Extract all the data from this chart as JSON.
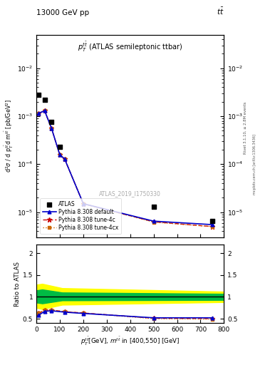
{
  "title_left": "13000 GeV pp",
  "title_right": "tt̅",
  "panel_title": "$p_T^{t\\bar{t}}$ (ATLAS semileptonic ttbar)",
  "watermark": "ATLAS_2019_I1750330",
  "right_label": "mcplots.cern.ch [arXiv:1306.3436]",
  "rivet_label": "Rivet 3.1.10, ≥ 2.8M events",
  "xlim": [
    0,
    800
  ],
  "ylim_log": [
    3e-06,
    0.05
  ],
  "ylim_ratio": [
    0.4,
    2.2
  ],
  "atlas_x": [
    10,
    35,
    65,
    100,
    500,
    750
  ],
  "atlas_y": [
    0.0028,
    0.0022,
    0.00075,
    0.00023,
    1.3e-05,
    6.5e-06
  ],
  "py_x": [
    10,
    35,
    65,
    100,
    120,
    200,
    500,
    750
  ],
  "py_default_y": [
    0.00115,
    0.0013,
    0.00055,
    0.000155,
    0.00013,
    1.5e-05,
    6.5e-06,
    5.5e-06
  ],
  "py_4c_y": [
    0.00115,
    0.0013,
    0.00055,
    0.000155,
    0.00013,
    1.5e-05,
    6.3e-06,
    5e-06
  ],
  "py_4cx_y": [
    0.00115,
    0.0013,
    0.00055,
    0.000155,
    0.00013,
    1.5e-05,
    6.2e-06,
    5e-06
  ],
  "ratio_x": [
    10,
    35,
    65,
    120,
    200,
    500,
    750
  ],
  "ratio_default_y": [
    0.58,
    0.67,
    0.68,
    0.65,
    0.62,
    0.52,
    0.52
  ],
  "ratio_4c_y": [
    0.63,
    0.69,
    0.7,
    0.66,
    0.63,
    0.51,
    0.5
  ],
  "ratio_4cx_y": [
    0.63,
    0.69,
    0.7,
    0.66,
    0.63,
    0.5,
    0.49
  ],
  "color_default": "#0000cc",
  "color_4c": "#cc0000",
  "color_4cx": "#cc6600",
  "color_atlas": "#000000",
  "color_band_yellow": "#ffff00",
  "color_band_green": "#00bb44"
}
